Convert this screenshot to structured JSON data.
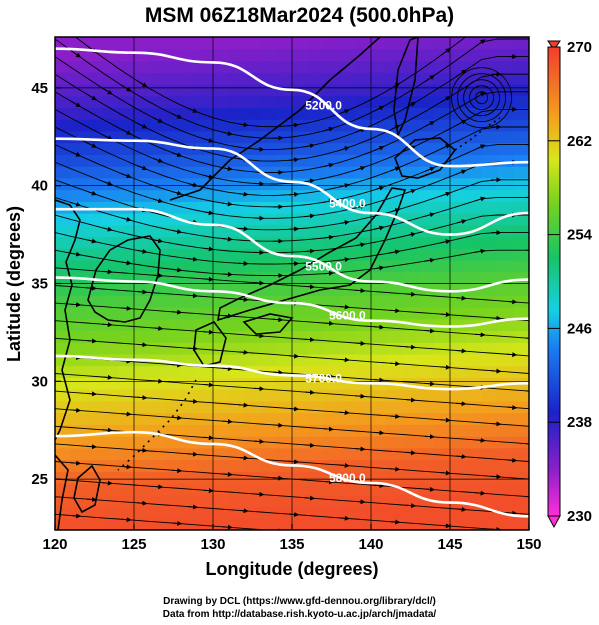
{
  "title": "MSM 06Z18Mar2024 (500.0hPa)",
  "chart_data": {
    "type": "heatmap",
    "title": "MSM 06Z18Mar2024 (500.0hPa)",
    "xlabel": "Longitude (degrees)",
    "ylabel": "Latitude  (degrees)",
    "xlim": [
      120,
      150
    ],
    "ylim": [
      22.4,
      47.6
    ],
    "x_ticks": [
      120,
      125,
      130,
      135,
      140,
      145,
      150
    ],
    "y_ticks": [
      25,
      30,
      35,
      40,
      45
    ],
    "x_tick_labels": [
      "120",
      "125",
      "130",
      "135",
      "140",
      "145",
      "150"
    ],
    "y_tick_labels": [
      "25",
      "30",
      "35",
      "40",
      "45"
    ],
    "grid": true,
    "colorbar": {
      "min": 230,
      "max": 270,
      "ticks": [
        230,
        238,
        246,
        254,
        262,
        270
      ],
      "tick_labels": [
        "230",
        "238",
        "246",
        "254",
        "262",
        "270"
      ]
    },
    "temperature_bands": [
      {
        "lat": 23.0,
        "value": 269
      },
      {
        "lat": 25.5,
        "value": 268
      },
      {
        "lat": 28.0,
        "value": 264
      },
      {
        "lat": 30.0,
        "value": 261
      },
      {
        "lat": 32.0,
        "value": 258
      },
      {
        "lat": 34.5,
        "value": 255
      },
      {
        "lat": 37.0,
        "value": 251
      },
      {
        "lat": 39.5,
        "value": 246
      },
      {
        "lat": 42.0,
        "value": 241
      },
      {
        "lat": 44.5,
        "value": 237
      },
      {
        "lat": 47.5,
        "value": 234
      }
    ],
    "contours": [
      {
        "value": "5200.0",
        "points": [
          [
            120,
            47.0
          ],
          [
            125,
            46.8
          ],
          [
            130,
            46.3
          ],
          [
            135,
            44.9
          ],
          [
            140,
            42.9
          ],
          [
            145,
            41.0
          ],
          [
            150,
            41.2
          ]
        ]
      },
      {
        "value": "5400.0",
        "points": [
          [
            120,
            42.4
          ],
          [
            125,
            42.3
          ],
          [
            130,
            41.9
          ],
          [
            135,
            40.2
          ],
          [
            140,
            38.6
          ],
          [
            145,
            37.5
          ],
          [
            150,
            38.6
          ]
        ]
      },
      {
        "value": "5500.0",
        "points": [
          [
            120,
            38.8
          ],
          [
            125,
            38.8
          ],
          [
            130,
            38.0
          ],
          [
            135,
            36.4
          ],
          [
            140,
            35.1
          ],
          [
            145,
            34.6
          ],
          [
            150,
            35.2
          ]
        ]
      },
      {
        "value": "5600.0",
        "points": [
          [
            120,
            35.3
          ],
          [
            125,
            35.1
          ],
          [
            130,
            34.6
          ],
          [
            135,
            34.0
          ],
          [
            140,
            33.1
          ],
          [
            145,
            32.8
          ],
          [
            150,
            33.2
          ]
        ]
      },
      {
        "value": "5700.0",
        "points": [
          [
            120,
            31.3
          ],
          [
            125,
            31.1
          ],
          [
            130,
            30.8
          ],
          [
            135,
            30.3
          ],
          [
            140,
            29.9
          ],
          [
            145,
            29.6
          ],
          [
            150,
            29.9
          ]
        ]
      },
      {
        "value": "5800.0",
        "points": [
          [
            120,
            27.2
          ],
          [
            125,
            27.4
          ],
          [
            130,
            26.8
          ],
          [
            135,
            25.7
          ],
          [
            140,
            24.8
          ],
          [
            145,
            23.8
          ],
          [
            150,
            23.1
          ]
        ]
      }
    ],
    "vortex": {
      "lon": 147,
      "lat": 44.5
    }
  },
  "credits": [
    "Drawing by DCL (https://www.gfd-dennou.org/library/dcl/)",
    "Data from http://database.rish.kyoto-u.ac.jp/arch/jmadata/"
  ]
}
